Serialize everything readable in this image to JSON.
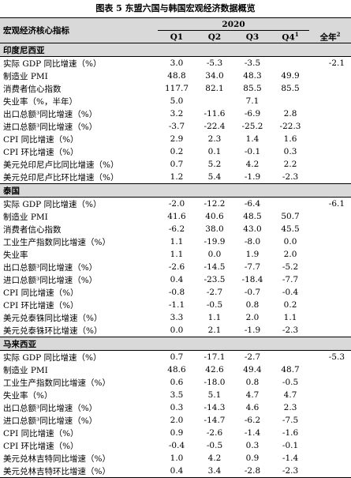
{
  "caption": "图表 5 东盟六国与韩国宏观经济数据概览",
  "header": {
    "indicator_label": "宏观经济核心指标",
    "year": "2020",
    "columns": [
      "Q1",
      "Q2",
      "Q3",
      "Q4",
      "全年"
    ],
    "q4_sup": "1",
    "annual_sup": "2"
  },
  "sections": [
    {
      "name": "印度尼西亚",
      "rows": [
        {
          "label": "实际 GDP 同比增速（%）",
          "values": [
            "3.0",
            "-5.3",
            "-3.5",
            "",
            "-2.1"
          ]
        },
        {
          "label": "制造业 PMI",
          "values": [
            "48.8",
            "34.0",
            "48.3",
            "49.9",
            ""
          ]
        },
        {
          "label": "消费者信心指数",
          "values": [
            "117.7",
            "82.1",
            "85.5",
            "85.5",
            ""
          ]
        },
        {
          "label": "失业率（%，半年）",
          "values": [
            "5.0",
            "",
            "7.1",
            "",
            ""
          ]
        },
        {
          "label": "出口总额³同比增速（%）",
          "values": [
            "3.2",
            "-11.6",
            "-6.9",
            "2.8",
            ""
          ]
        },
        {
          "label": "进口总额³同比增速（%）",
          "values": [
            "-3.7",
            "-22.4",
            "-25.2",
            "-22.3",
            ""
          ]
        },
        {
          "label": "CPI 同比增速（%）",
          "values": [
            "2.9",
            "2.3",
            "1.4",
            "1.6",
            ""
          ]
        },
        {
          "label": "CPI 环比增速（%）",
          "values": [
            "0.2",
            "0.1",
            "-0.1",
            "0.3",
            ""
          ]
        },
        {
          "label": "美元兑印尼卢比同比增速（%）",
          "values": [
            "0.7",
            "5.2",
            "4.2",
            "2.2",
            ""
          ]
        },
        {
          "label": "美元兑印尼卢比环比增速（%）",
          "values": [
            "1.2",
            "5.4",
            "-1.9",
            "-2.3",
            ""
          ]
        }
      ]
    },
    {
      "name": "泰国",
      "rows": [
        {
          "label": "实际 GDP 同比增速（%）",
          "values": [
            "-2.0",
            "-12.2",
            "-6.4",
            "",
            "-6.1"
          ]
        },
        {
          "label": "制造业 PMI",
          "values": [
            "41.6",
            "40.6",
            "48.5",
            "50.7",
            ""
          ]
        },
        {
          "label": "消费者信心指数",
          "values": [
            "-6.2",
            "38.0",
            "43.0",
            "45.5",
            ""
          ]
        },
        {
          "label": "工业生产指数同比增速（%）",
          "values": [
            "1.1",
            "-19.9",
            "-8.0",
            "0.0",
            ""
          ]
        },
        {
          "label": "失业率",
          "values": [
            "1.1",
            "0.0",
            "1.9",
            "2.0",
            ""
          ]
        },
        {
          "label": "出口总额³同比增速（%）",
          "values": [
            "-2.6",
            "-14.5",
            "-7.7",
            "-5.2",
            ""
          ]
        },
        {
          "label": "进口总额³同比增速（%）",
          "values": [
            "0.4",
            "-23.5",
            "-18.4",
            "-7.7",
            ""
          ]
        },
        {
          "label": "CPI 同比增速（%）",
          "values": [
            "-0.8",
            "-2.7",
            "-0.7",
            "-0.4",
            ""
          ]
        },
        {
          "label": "CPI 环比增速（%）",
          "values": [
            "-1.1",
            "-0.5",
            "0.8",
            "0.2",
            ""
          ]
        },
        {
          "label": "美元兑泰铢同比增速（%）",
          "values": [
            "3.3",
            "1.1",
            "2.0",
            "1.1",
            ""
          ]
        },
        {
          "label": "美元兑泰铢环比增速（%）",
          "values": [
            "0.0",
            "2.1",
            "-1.9",
            "-2.3",
            ""
          ]
        }
      ]
    },
    {
      "name": "马来西亚",
      "rows": [
        {
          "label": "实际 GDP 同比增速（%）",
          "values": [
            "0.7",
            "-17.1",
            "-2.7",
            "",
            "-5.3"
          ]
        },
        {
          "label": "制造业 PMI",
          "values": [
            "48.6",
            "42.6",
            "49.4",
            "48.7",
            ""
          ]
        },
        {
          "label": "工业生产指数同比增速（%）",
          "values": [
            "0.6",
            "-18.0",
            "0.8",
            "-0.5",
            ""
          ]
        },
        {
          "label": "失业率（%）",
          "values": [
            "3.5",
            "5.1",
            "4.7",
            "4.7",
            ""
          ]
        },
        {
          "label": "出口总额³同比增速（%）",
          "values": [
            "0.3",
            "-14.3",
            "4.6",
            "2.3",
            ""
          ]
        },
        {
          "label": "进口总额³同比增速（%）",
          "values": [
            "2.0",
            "-14.7",
            "-6.2",
            "-7.5",
            ""
          ]
        },
        {
          "label": "CPI 同比增速（%）",
          "values": [
            "0.9",
            "-2.6",
            "-1.4",
            "-1.6",
            ""
          ]
        },
        {
          "label": "CPI 环比增速（%）",
          "values": [
            "-0.4",
            "-0.5",
            "0.3",
            "-0.1",
            ""
          ]
        },
        {
          "label": "美元兑林吉特同比增速（%）",
          "values": [
            "1.0",
            "4.2",
            "0.9",
            "-1.4",
            ""
          ]
        },
        {
          "label": "美元兑林吉特环比增速（%）",
          "values": [
            "0.4",
            "3.4",
            "-2.8",
            "-2.3",
            ""
          ]
        }
      ]
    }
  ]
}
